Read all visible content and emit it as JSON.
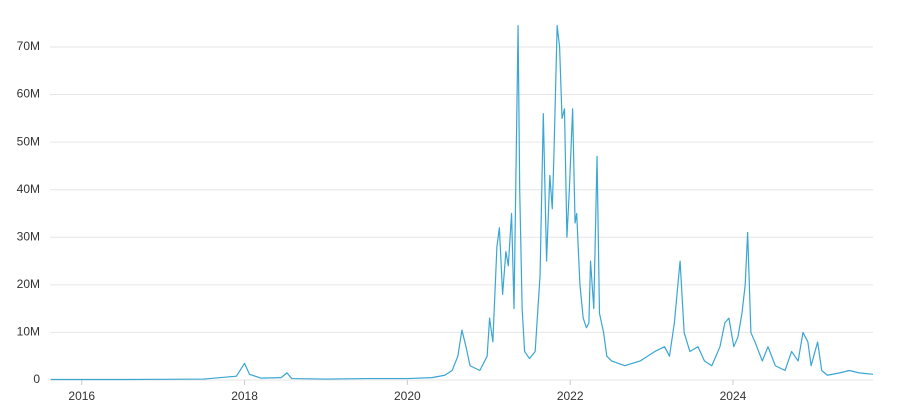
{
  "chart_data": {
    "type": "line",
    "color": "#3aa6d3",
    "grid": true,
    "xlim": [
      2015.61,
      2025.72
    ],
    "xticks": [
      2016,
      2018,
      2020,
      2022,
      2024
    ],
    "ylim": [
      0,
      75000000
    ],
    "yticks": [
      {
        "value": 0,
        "label": "0"
      },
      {
        "value": 10000000,
        "label": "10M"
      },
      {
        "value": 20000000,
        "label": "20M"
      },
      {
        "value": 30000000,
        "label": "30M"
      },
      {
        "value": 40000000,
        "label": "40M"
      },
      {
        "value": 50000000,
        "label": "50M"
      },
      {
        "value": 60000000,
        "label": "60M"
      },
      {
        "value": 70000000,
        "label": "70M"
      }
    ],
    "x": [
      2015.62,
      2016.0,
      2016.5,
      2017.0,
      2017.5,
      2017.9,
      2018.0,
      2018.06,
      2018.2,
      2018.45,
      2018.52,
      2018.58,
      2019.0,
      2019.5,
      2020.0,
      2020.3,
      2020.46,
      2020.55,
      2020.62,
      2020.67,
      2020.72,
      2020.77,
      2020.89,
      2020.98,
      2021.01,
      2021.05,
      2021.1,
      2021.13,
      2021.17,
      2021.21,
      2021.24,
      2021.28,
      2021.31,
      2021.36,
      2021.38,
      2021.41,
      2021.44,
      2021.5,
      2021.57,
      2021.63,
      2021.67,
      2021.71,
      2021.75,
      2021.78,
      2021.8,
      2021.84,
      2021.87,
      2021.9,
      2021.93,
      2021.96,
      2021.99,
      2022.03,
      2022.06,
      2022.08,
      2022.12,
      2022.16,
      2022.2,
      2022.23,
      2022.25,
      2022.29,
      2022.33,
      2022.36,
      2022.41,
      2022.45,
      2022.51,
      2022.67,
      2022.86,
      2023.04,
      2023.16,
      2023.22,
      2023.28,
      2023.35,
      2023.4,
      2023.47,
      2023.57,
      2023.65,
      2023.74,
      2023.84,
      2023.9,
      2023.95,
      2024.01,
      2024.06,
      2024.11,
      2024.15,
      2024.18,
      2024.22,
      2024.27,
      2024.36,
      2024.43,
      2024.52,
      2024.64,
      2024.72,
      2024.8,
      2024.86,
      2024.92,
      2024.96,
      2025.04,
      2025.09,
      2025.16,
      2025.31,
      2025.43,
      2025.55,
      2025.72
    ],
    "values": [
      100000,
      100000,
      100000,
      150000,
      200000,
      800000,
      3500000,
      1200000,
      400000,
      500000,
      1500000,
      300000,
      200000,
      300000,
      300000,
      500000,
      1000000,
      2000000,
      5000000,
      10500000,
      7000000,
      3000000,
      2000000,
      5000000,
      13000000,
      8000000,
      28000000,
      32000000,
      18000000,
      27000000,
      24000000,
      35000000,
      15000000,
      74500000,
      40000000,
      15000000,
      6000000,
      4500000,
      6000000,
      22000000,
      56000000,
      25000000,
      43000000,
      36000000,
      47000000,
      74500000,
      70000000,
      55000000,
      57000000,
      30000000,
      40000000,
      57000000,
      33000000,
      35000000,
      20000000,
      13000000,
      11000000,
      12000000,
      25000000,
      15000000,
      47000000,
      14000000,
      10000000,
      5000000,
      4000000,
      3000000,
      4000000,
      6000000,
      7000000,
      5000000,
      12000000,
      25000000,
      10000000,
      6000000,
      7000000,
      4000000,
      3000000,
      7000000,
      12000000,
      13000000,
      7000000,
      9000000,
      14000000,
      20000000,
      31000000,
      10000000,
      8000000,
      4000000,
      7000000,
      3000000,
      2000000,
      6000000,
      4000000,
      10000000,
      8000000,
      3000000,
      8000000,
      2000000,
      1000000,
      1500000,
      2000000,
      1500000,
      1200000
    ]
  }
}
